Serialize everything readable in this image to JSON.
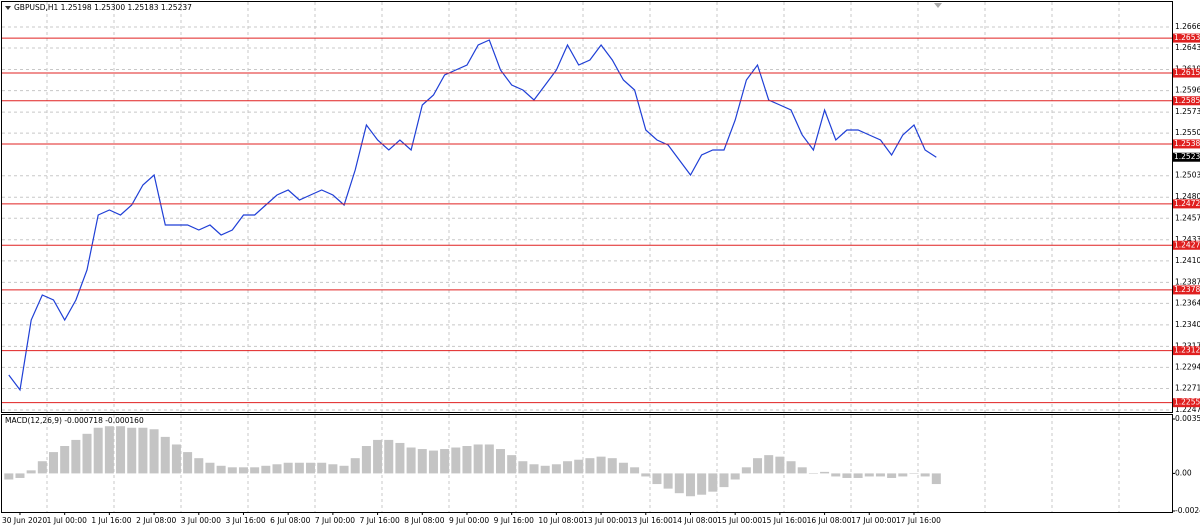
{
  "header": {
    "text": "GBPUSD,H1  1.25198 1.25300 1.25183 1.25237"
  },
  "indicator_header": {
    "text": "MACD(12,26,9) -0.000718 -0.000160"
  },
  "levels": [
    1.26539,
    1.26157,
    1.25854,
    1.25382,
    1.24727,
    1.24275,
    1.23787,
    1.23124,
    1.22555
  ],
  "current_price": 1.25237,
  "chart_data": [
    {
      "type": "line",
      "color": "#1f3fd6",
      "grid": true,
      "categories": [
        null,
        "30 Jun 2020",
        null,
        null,
        null,
        "1 Jul 00:00",
        null,
        null,
        null,
        "1 Jul 16:00",
        null,
        null,
        null,
        "2 Jul 08:00",
        null,
        null,
        null,
        "3 Jul 00:00",
        null,
        null,
        null,
        "3 Jul 16:00",
        null,
        null,
        null,
        "6 Jul 08:00",
        null,
        null,
        null,
        "7 Jul 00:00",
        null,
        null,
        null,
        "7 Jul 16:00",
        null,
        null,
        null,
        "8 Jul 08:00",
        null,
        null,
        null,
        "9 Jul 00:00",
        null,
        null,
        null,
        "9 Jul 16:00",
        null,
        null,
        null,
        "10 Jul 08:00",
        null,
        null,
        null,
        "13 Jul 00:00",
        null,
        null,
        null,
        "13 Jul 16:00",
        null,
        null,
        null,
        "14 Jul 08:00",
        null,
        null,
        null,
        "15 Jul 00:00",
        null,
        null,
        null,
        "15 Jul 16:00",
        null,
        null,
        null,
        "16 Jul 08:00",
        null,
        null,
        null,
        "17 Jul 00:00",
        null,
        null,
        null,
        "17 Jul 16:00",
        null,
        null
      ],
      "values": [
        1.22857,
        1.22694,
        1.23458,
        1.23732,
        1.23677,
        1.23458,
        1.23677,
        1.24005,
        1.24606,
        1.2466,
        1.24606,
        1.24715,
        1.24934,
        1.25043,
        1.24496,
        1.24496,
        1.24496,
        1.24442,
        1.24496,
        1.24387,
        1.24442,
        1.24606,
        1.24606,
        1.24715,
        1.24824,
        1.24879,
        1.2477,
        1.24824,
        1.24879,
        1.24824,
        1.24715,
        1.25097,
        1.25589,
        1.25425,
        1.25316,
        1.25425,
        1.25316,
        1.25808,
        1.25917,
        1.26135,
        1.2619,
        1.26245,
        1.26463,
        1.26518,
        1.2619,
        1.26026,
        1.25972,
        1.25862,
        1.26026,
        1.2619,
        1.26463,
        1.26245,
        1.26299,
        1.26463,
        1.26299,
        1.26081,
        1.25972,
        1.25535,
        1.25425,
        1.25371,
        1.25207,
        1.25043,
        1.25261,
        1.25316,
        1.25316,
        1.25644,
        1.26081,
        1.26245,
        1.25862,
        1.25808,
        1.25753,
        1.2548,
        1.25316,
        1.25753,
        1.25425,
        1.25535,
        1.25535,
        1.2548,
        1.25425,
        1.25261,
        1.2548,
        1.25589,
        1.25316,
        1.25237
      ],
      "ylim": [
        1.22453,
        1.26955
      ],
      "yticks": [
        {
          "value": 1.2666,
          "label": "1.26660"
        },
        {
          "value": 1.2643,
          "label": "1.26430"
        },
        1.26195,
        1.25965,
        {
          "value": 1.2573,
          "label": "1.25730"
        },
        {
          "value": 1.255,
          "label": "1.25500"
        },
        1.25035,
        {
          "value": 1.248,
          "label": "1.24800"
        },
        {
          "value": 1.2457,
          "label": "1.24570"
        },
        1.24335,
        1.24105,
        {
          "value": 1.2387,
          "label": "1.23870"
        },
        {
          "value": 1.2364,
          "label": "1.23640"
        },
        1.23405,
        {
          "value": 1.2317,
          "label": "1.23170"
        },
        {
          "value": 1.2294,
          "label": "1.22940"
        },
        {
          "value": 1.2271,
          "label": "1.22710"
        },
        1.22475
      ]
    },
    {
      "type": "bar",
      "color": "#c4c4c4",
      "values": [
        -0.0004,
        -0.0003,
        0.0002,
        0.0008,
        0.0014,
        0.0018,
        0.0022,
        0.0026,
        0.003,
        0.0031,
        0.0031,
        0.003,
        0.003,
        0.0029,
        0.0024,
        0.0019,
        0.0014,
        0.001,
        0.0007,
        0.0005,
        0.0004,
        0.0004,
        0.0004,
        0.0005,
        0.0006,
        0.0007,
        0.0007,
        0.0007,
        0.0007,
        0.0006,
        0.0005,
        0.001,
        0.0018,
        0.0022,
        0.0022,
        0.002,
        0.0017,
        0.0016,
        0.0015,
        0.0016,
        0.0017,
        0.0018,
        0.0019,
        0.0019,
        0.0016,
        0.0012,
        0.0008,
        0.0006,
        0.0005,
        0.0006,
        0.0008,
        0.0009,
        0.001,
        0.0011,
        0.001,
        0.0007,
        0.0004,
        -0.0002,
        -0.0007,
        -0.001,
        -0.0013,
        -0.0015,
        -0.0014,
        -0.0012,
        -0.0009,
        -0.0004,
        0.0004,
        0.001,
        0.0012,
        0.0011,
        0.0008,
        0.0004,
        0,
        0.0001,
        -0.0002,
        -0.0003,
        -0.0003,
        -0.0002,
        -0.0002,
        -0.0003,
        -0.0002,
        0,
        -0.0002,
        -0.0007
      ],
      "ylim": [
        -0.00247,
        0.003574
      ],
      "yticks": [
        0.003574,
        {
          "value": 0,
          "label": "0.00"
        },
        -0.00247
      ]
    }
  ]
}
